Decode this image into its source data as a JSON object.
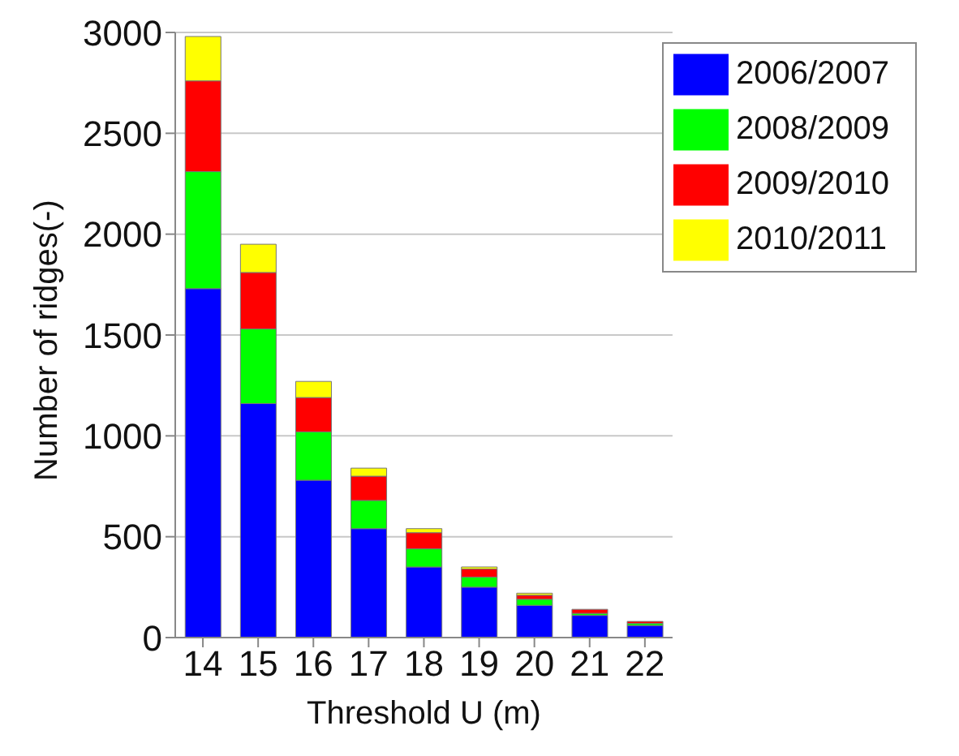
{
  "chart_data": {
    "type": "bar",
    "stacked": true,
    "xlabel": "Threshold U (m)",
    "ylabel": "Number of ridges(-)",
    "categories": [
      "14",
      "15",
      "16",
      "17",
      "18",
      "19",
      "20",
      "21",
      "22"
    ],
    "series": [
      {
        "name": "2006/2007",
        "color": "#0000ff",
        "values": [
          1730,
          1160,
          780,
          540,
          350,
          250,
          160,
          110,
          60
        ]
      },
      {
        "name": "2008/2009",
        "color": "#00ff00",
        "values": [
          580,
          370,
          240,
          140,
          90,
          50,
          30,
          10,
          10
        ]
      },
      {
        "name": "2009/2010",
        "color": "#ff0000",
        "values": [
          450,
          280,
          170,
          120,
          80,
          40,
          20,
          20,
          10
        ]
      },
      {
        "name": "2010/2011",
        "color": "#ffff00",
        "values": [
          220,
          140,
          80,
          40,
          20,
          10,
          10,
          0,
          0
        ]
      }
    ],
    "ylim": [
      0,
      3000
    ],
    "yticks": [
      0,
      500,
      1000,
      1500,
      2000,
      2500,
      3000
    ],
    "grid": "y",
    "legend": "top right"
  }
}
